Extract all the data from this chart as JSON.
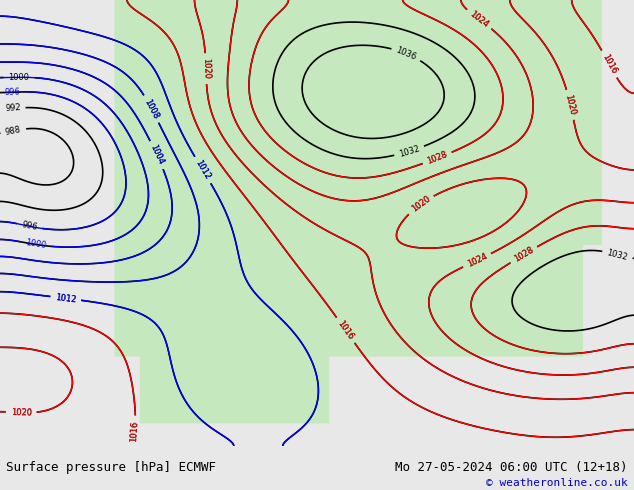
{
  "title_left": "Surface pressure [hPa] ECMWF",
  "title_right": "Mo 27-05-2024 06:00 UTC (12+18)",
  "copyright": "© weatheronline.co.uk",
  "figsize": [
    6.34,
    4.9
  ],
  "dpi": 100,
  "bg_color": "#e8e8e8",
  "map_bg_color": "#f0f0f0",
  "land_color": "#c8e6c0",
  "ocean_color": "#d8e8f0",
  "bottom_bar_color": "#e0e0e0",
  "bottom_bar_height": 0.09,
  "title_fontsize": 9,
  "copyright_fontsize": 8,
  "copyright_color": "#0000cc"
}
